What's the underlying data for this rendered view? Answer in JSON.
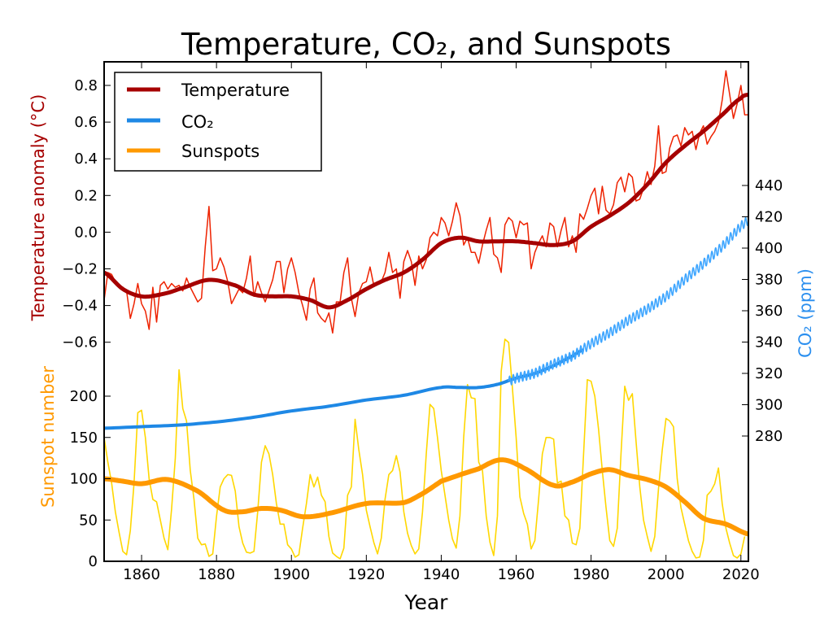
{
  "chart_data": {
    "type": "line",
    "title": "Temperature, CO₂, and Sunspots",
    "xlabel": "Year",
    "xlim": [
      1850,
      2022
    ],
    "x_ticks": [
      "1860",
      "1880",
      "1900",
      "1920",
      "1940",
      "1960",
      "1980",
      "2000",
      "2020"
    ],
    "grid": false,
    "legend_position": "top-left",
    "legend": [
      {
        "label": "Temperature",
        "color": "#a60000"
      },
      {
        "label": "CO₂",
        "color": "#1e88e5"
      },
      {
        "label": "Sunspots",
        "color": "#ff9900"
      }
    ],
    "axes": {
      "temperature": {
        "label": "Temperature anomaly (°C)",
        "color": "#a60000",
        "ticks": [
          "−0.6",
          "−0.4",
          "−0.2",
          "0.0",
          "0.2",
          "0.4",
          "0.6",
          "0.8"
        ],
        "tick_values": [
          -0.6,
          -0.4,
          -0.2,
          0,
          0.2,
          0.4,
          0.6,
          0.8
        ]
      },
      "sunspots": {
        "label": "Sunspot number",
        "color": "#ff9900",
        "ticks": [
          "0",
          "50",
          "100",
          "150",
          "200"
        ],
        "tick_values": [
          0,
          50,
          100,
          150,
          200
        ]
      },
      "co2": {
        "label": "CO₂ (ppm)",
        "color": "#2b8fef",
        "ticks": [
          "280",
          "300",
          "320",
          "340",
          "360",
          "380",
          "400",
          "420",
          "440"
        ],
        "tick_values": [
          280,
          300,
          320,
          340,
          360,
          380,
          400,
          420,
          440
        ]
      }
    },
    "series": [
      {
        "name": "Temperature",
        "kind": "annual",
        "color": "#ee2200",
        "x_start": 1850,
        "values": [
          -0.37,
          -0.22,
          -0.23,
          -0.27,
          -0.29,
          -0.3,
          -0.32,
          -0.47,
          -0.39,
          -0.28,
          -0.39,
          -0.43,
          -0.53,
          -0.3,
          -0.49,
          -0.29,
          -0.27,
          -0.31,
          -0.28,
          -0.3,
          -0.29,
          -0.32,
          -0.25,
          -0.3,
          -0.34,
          -0.38,
          -0.36,
          -0.08,
          0.14,
          -0.21,
          -0.2,
          -0.14,
          -0.19,
          -0.27,
          -0.39,
          -0.35,
          -0.31,
          -0.33,
          -0.25,
          -0.13,
          -0.35,
          -0.27,
          -0.33,
          -0.38,
          -0.32,
          -0.26,
          -0.16,
          -0.16,
          -0.33,
          -0.2,
          -0.14,
          -0.22,
          -0.33,
          -0.4,
          -0.48,
          -0.31,
          -0.25,
          -0.44,
          -0.47,
          -0.49,
          -0.44,
          -0.55,
          -0.38,
          -0.38,
          -0.22,
          -0.14,
          -0.36,
          -0.46,
          -0.33,
          -0.28,
          -0.27,
          -0.19,
          -0.29,
          -0.27,
          -0.27,
          -0.22,
          -0.11,
          -0.22,
          -0.2,
          -0.36,
          -0.16,
          -0.1,
          -0.16,
          -0.29,
          -0.13,
          -0.2,
          -0.15,
          -0.03,
          0.0,
          -0.02,
          0.08,
          0.05,
          -0.02,
          0.06,
          0.16,
          0.09,
          -0.07,
          -0.03,
          -0.11,
          -0.11,
          -0.17,
          -0.07,
          0.01,
          0.08,
          -0.12,
          -0.14,
          -0.22,
          0.04,
          0.08,
          0.06,
          -0.03,
          0.06,
          0.04,
          0.05,
          -0.2,
          -0.11,
          -0.06,
          -0.02,
          -0.08,
          0.05,
          0.03,
          -0.08,
          0.01,
          0.08,
          -0.08,
          -0.02,
          -0.11,
          0.1,
          0.07,
          0.13,
          0.2,
          0.24,
          0.1,
          0.25,
          0.12,
          0.1,
          0.15,
          0.27,
          0.3,
          0.22,
          0.32,
          0.3,
          0.17,
          0.18,
          0.24,
          0.33,
          0.26,
          0.36,
          0.58,
          0.32,
          0.33,
          0.46,
          0.52,
          0.53,
          0.47,
          0.57,
          0.53,
          0.55,
          0.45,
          0.54,
          0.58,
          0.48,
          0.52,
          0.55,
          0.6,
          0.72,
          0.88,
          0.75,
          0.62,
          0.7,
          0.8,
          0.64,
          0.64
        ]
      },
      {
        "name": "Temperature",
        "kind": "smoothed",
        "color": "#a60000",
        "x": [
          1850,
          1855,
          1860,
          1865,
          1870,
          1878,
          1885,
          1890,
          1895,
          1900,
          1905,
          1910,
          1915,
          1920,
          1925,
          1930,
          1935,
          1940,
          1945,
          1950,
          1955,
          1960,
          1965,
          1970,
          1975,
          1980,
          1985,
          1990,
          1995,
          2000,
          2005,
          2010,
          2015,
          2020,
          2022
        ],
        "values": [
          -0.22,
          -0.31,
          -0.35,
          -0.34,
          -0.31,
          -0.26,
          -0.29,
          -0.34,
          -0.35,
          -0.35,
          -0.37,
          -0.41,
          -0.37,
          -0.31,
          -0.26,
          -0.22,
          -0.15,
          -0.06,
          -0.03,
          -0.05,
          -0.05,
          -0.05,
          -0.06,
          -0.07,
          -0.05,
          0.03,
          0.09,
          0.16,
          0.26,
          0.38,
          0.47,
          0.55,
          0.64,
          0.73,
          0.75
        ]
      },
      {
        "name": "CO₂",
        "kind": "ice-core",
        "color": "#1e88e5",
        "x": [
          1850,
          1860,
          1870,
          1880,
          1890,
          1900,
          1910,
          1920,
          1930,
          1940,
          1945,
          1950,
          1955,
          1960,
          1965,
          1970,
          1975,
          1978
        ],
        "values": [
          285,
          286,
          287,
          289,
          292,
          296,
          299,
          303,
          306,
          311,
          311,
          311,
          313,
          317,
          320,
          325,
          331,
          335
        ]
      },
      {
        "name": "CO₂",
        "kind": "monthly",
        "color": "#3fa6ff",
        "seasonal_amplitude_ppm": 3,
        "x": [
          1958,
          1960,
          1965,
          1970,
          1975,
          1980,
          1985,
          1990,
          1995,
          2000,
          2005,
          2010,
          2015,
          2020,
          2022
        ],
        "values": [
          315,
          317,
          320,
          326,
          331,
          339,
          346,
          354,
          361,
          369,
          380,
          390,
          401,
          414,
          418
        ]
      },
      {
        "name": "Sunspots",
        "kind": "annual",
        "color": "#ffd700",
        "x_start": 1850,
        "values": [
          150,
          120,
          95,
          60,
          35,
          12,
          8,
          37,
          95,
          180,
          183,
          150,
          100,
          75,
          72,
          50,
          28,
          14,
          63,
          125,
          232,
          185,
          170,
          110,
          75,
          28,
          20,
          21,
          6,
          9,
          54,
          90,
          100,
          105,
          104,
          85,
          42,
          22,
          11,
          10,
          12,
          60,
          120,
          140,
          130,
          105,
          70,
          45,
          45,
          20,
          15,
          5,
          8,
          40,
          70,
          105,
          90,
          102,
          80,
          72,
          30,
          10,
          6,
          3,
          16,
          80,
          90,
          172,
          135,
          105,
          62,
          42,
          23,
          9,
          28,
          75,
          105,
          110,
          128,
          108,
          60,
          34,
          19,
          9,
          15,
          60,
          130,
          190,
          185,
          150,
          110,
          80,
          50,
          27,
          16,
          55,
          150,
          214,
          198,
          197,
          120,
          110,
          55,
          23,
          7,
          55,
          230,
          269,
          265,
          210,
          150,
          78,
          58,
          45,
          15,
          25,
          75,
          130,
          150,
          150,
          148,
          95,
          97,
          55,
          50,
          22,
          20,
          40,
          130,
          220,
          218,
          200,
          160,
          110,
          65,
          25,
          18,
          40,
          130,
          212,
          195,
          203,
          145,
          90,
          50,
          30,
          12,
          30,
          88,
          135,
          173,
          170,
          163,
          100,
          65,
          45,
          25,
          12,
          4,
          5,
          25,
          80,
          85,
          94,
          113,
          70,
          40,
          22,
          7,
          4,
          9,
          30
        ]
      },
      {
        "name": "Sunspots",
        "kind": "smoothed",
        "color": "#ff9900",
        "x": [
          1850,
          1855,
          1860,
          1867,
          1875,
          1882,
          1887,
          1892,
          1897,
          1903,
          1910,
          1920,
          1930,
          1935,
          1940,
          1950,
          1956,
          1962,
          1970,
          1975,
          1980,
          1985,
          1990,
          1995,
          2000,
          2005,
          2010,
          2016,
          2022
        ],
        "values": [
          100,
          97,
          94,
          99,
          85,
          62,
          60,
          64,
          62,
          54,
          58,
          70,
          71,
          82,
          97,
          112,
          123,
          113,
          92,
          96,
          106,
          111,
          104,
          99,
          90,
          72,
          52,
          45,
          33
        ]
      }
    ]
  }
}
